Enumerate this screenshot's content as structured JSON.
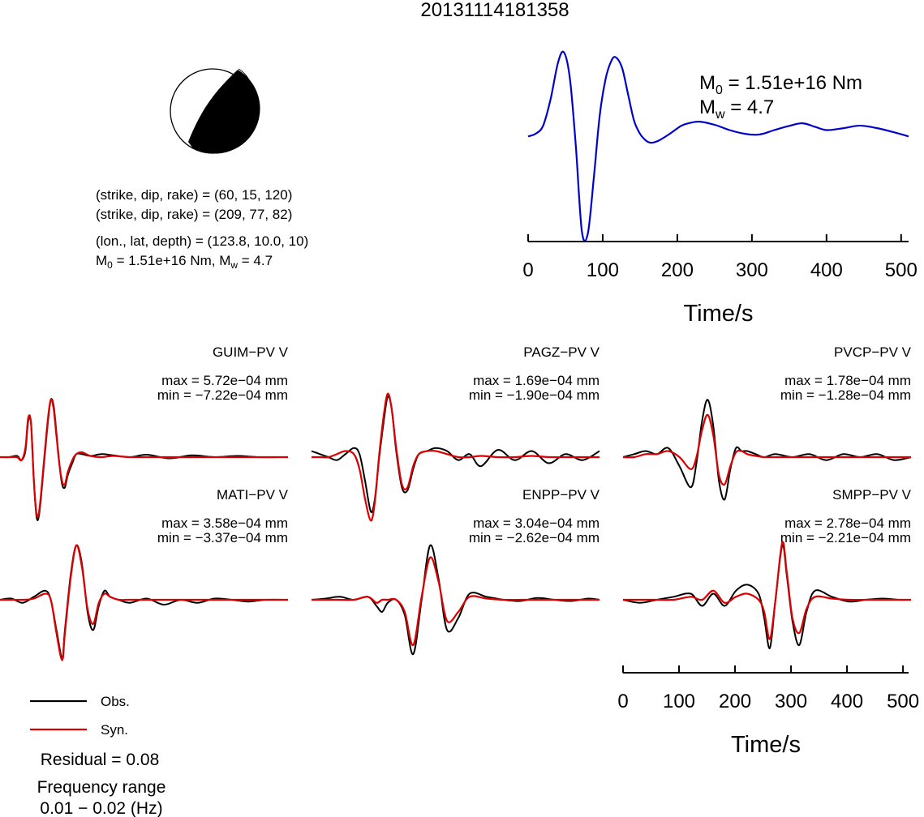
{
  "title": "20131114181358",
  "mechanism": {
    "plane1": "(strike, dip, rake) = (60, 15, 120)",
    "plane2": "(strike, dip, rake) = (209, 77, 82)",
    "location": "(lon., lat, depth) = (123.8, 10.0, 10)",
    "moment_prefix": "M",
    "moment_sub": "0",
    "moment_mid": " = 1.51e+16 Nm, M",
    "moment_sub2": "w",
    "moment_suffix": " = 4.7"
  },
  "stf_annotation": {
    "m0_main": "M",
    "m0_sub": "0",
    "m0_value": " = 1.51e+16 Nm",
    "mw_main": "M",
    "mw_sub": "w",
    "mw_value": " = 4.7"
  },
  "legend": {
    "observed": "Obs.",
    "synthetic": "Syn.",
    "residual": "Residual = 0.08",
    "freq_label": "Frequency range",
    "freq_value": "0.01 − 0.02 (Hz)"
  },
  "colors": {
    "observed": "#000000",
    "synthetic": "#dd0000",
    "stf": "#0000cc"
  },
  "chart_data": [
    {
      "type": "line",
      "name": "source-time-function",
      "xlabel": "Time/s",
      "xlim": [
        0,
        510
      ],
      "x_ticks": [
        0,
        100,
        200,
        300,
        400,
        500
      ],
      "tick_labels": [
        "0",
        "100",
        "200",
        "300",
        "400",
        "500"
      ],
      "x": [
        0,
        10,
        20,
        30,
        40,
        48,
        56,
        64,
        72,
        80,
        88,
        96,
        104,
        112,
        118,
        126,
        134,
        142,
        150,
        158,
        165,
        175,
        190,
        205,
        215,
        230,
        250,
        270,
        290,
        305,
        315,
        330,
        350,
        368,
        385,
        400,
        420,
        440,
        450,
        470,
        490,
        510
      ],
      "values": [
        0.0,
        0.05,
        0.2,
        0.7,
        1.4,
        1.6,
        1.1,
        -0.2,
        -1.8,
        -1.85,
        -0.8,
        0.4,
        1.1,
        1.45,
        1.5,
        1.3,
        0.8,
        0.3,
        0.05,
        -0.08,
        -0.12,
        -0.08,
        0.05,
        0.2,
        0.25,
        0.28,
        0.22,
        0.12,
        0.05,
        0.03,
        0.05,
        0.12,
        0.2,
        0.25,
        0.18,
        0.12,
        0.15,
        0.2,
        0.2,
        0.15,
        0.08,
        0.0
      ],
      "ylim": [
        -2,
        1.7
      ]
    },
    {
      "type": "line",
      "name": "waveform-panel",
      "station": "GUIM−PV V",
      "max_text": "max = 5.72e−04 mm",
      "min_text": "min = −7.22e−04 mm",
      "x": [
        0,
        15,
        30,
        38,
        45,
        50,
        55,
        60,
        65,
        70,
        78,
        85,
        90,
        95,
        100,
        105,
        110,
        115,
        120,
        128,
        135,
        145,
        160,
        180,
        200,
        230,
        260,
        300,
        340,
        380,
        420,
        460,
        510
      ],
      "observed": [
        0.0,
        0.0,
        0.02,
        -0.05,
        0.1,
        0.6,
        0.55,
        -0.4,
        -1.0,
        -0.9,
        -0.1,
        0.6,
        0.95,
        0.85,
        0.4,
        -0.1,
        -0.45,
        -0.5,
        -0.3,
        -0.1,
        0.05,
        0.05,
        0.02,
        0.05,
        0.03,
        0.0,
        0.04,
        -0.02,
        0.03,
        0.0,
        0.02,
        0.0,
        0.0
      ],
      "synthetic": [
        0.0,
        0.0,
        0.0,
        -0.05,
        0.15,
        0.65,
        0.55,
        -0.4,
        -0.95,
        -0.85,
        -0.05,
        0.65,
        0.95,
        0.8,
        0.35,
        -0.1,
        -0.4,
        -0.45,
        -0.25,
        -0.05,
        0.05,
        0.08,
        0.02,
        0.0,
        0.02,
        0.0,
        0.0,
        0.0,
        0.0,
        0.0,
        0.0,
        0.0,
        0.0
      ],
      "xlim": [
        0,
        510
      ],
      "ylim": [
        -1.1,
        1.1
      ]
    },
    {
      "type": "line",
      "name": "waveform-panel",
      "station": "PAGZ−PV V",
      "max_text": "max = 1.69e−04 mm",
      "min_text": "min = −1.90e−04 mm",
      "x": [
        0,
        15,
        30,
        45,
        60,
        75,
        85,
        95,
        105,
        112,
        120,
        128,
        135,
        142,
        150,
        160,
        170,
        180,
        190,
        205,
        220,
        240,
        260,
        280,
        300,
        330,
        360,
        390,
        420,
        450,
        480,
        510
      ],
      "observed": [
        0.1,
        0.05,
        0.0,
        -0.05,
        0.05,
        0.15,
        0.05,
        -0.4,
        -0.9,
        -0.7,
        0.0,
        0.6,
        1.0,
        0.8,
        0.1,
        -0.5,
        -0.55,
        -0.2,
        0.05,
        0.1,
        0.15,
        0.1,
        -0.05,
        0.05,
        -0.15,
        0.12,
        -0.05,
        0.1,
        -0.1,
        0.05,
        -0.05,
        0.1
      ],
      "synthetic": [
        0.0,
        0.0,
        0.0,
        0.05,
        0.1,
        0.05,
        -0.2,
        -0.7,
        -1.05,
        -0.75,
        0.05,
        0.7,
        1.05,
        0.8,
        0.15,
        -0.45,
        -0.5,
        -0.15,
        0.05,
        0.1,
        0.1,
        0.05,
        0.0,
        0.0,
        0.02,
        0.0,
        0.0,
        0.02,
        0.0,
        0.0,
        0.0,
        0.0
      ],
      "xlim": [
        0,
        510
      ],
      "ylim": [
        -1.1,
        1.1
      ]
    },
    {
      "type": "line",
      "name": "waveform-panel",
      "station": "PVCP−PV V",
      "max_text": "max = 1.78e−04 mm",
      "min_text": "min = −1.28e−04 mm",
      "x": [
        0,
        20,
        40,
        60,
        80,
        100,
        120,
        130,
        140,
        150,
        160,
        170,
        180,
        190,
        200,
        210,
        220,
        235,
        250,
        270,
        300,
        330,
        360,
        390,
        420,
        450,
        480,
        510
      ],
      "observed": [
        0.0,
        0.05,
        0.1,
        0.05,
        0.15,
        -0.15,
        -0.5,
        -0.1,
        0.6,
        0.95,
        0.5,
        -0.4,
        -0.7,
        -0.2,
        0.15,
        0.1,
        0.1,
        0.05,
        0.0,
        0.05,
        0.0,
        0.05,
        -0.05,
        0.05,
        0.0,
        0.05,
        -0.05,
        0.0
      ],
      "synthetic": [
        0.0,
        0.0,
        0.05,
        0.05,
        0.1,
        0.0,
        -0.2,
        0.0,
        0.45,
        0.7,
        0.35,
        -0.3,
        -0.45,
        -0.15,
        0.08,
        0.1,
        0.05,
        0.02,
        0.0,
        0.0,
        0.0,
        0.0,
        0.0,
        0.0,
        0.0,
        0.0,
        0.0,
        0.0
      ],
      "xlim": [
        0,
        510
      ],
      "ylim": [
        -1.1,
        1.1
      ]
    },
    {
      "type": "line",
      "name": "waveform-panel",
      "station": "MATI−PV V",
      "max_text": "max = 3.58e−04 mm",
      "min_text": "min = −3.37e−04 mm",
      "x": [
        0,
        20,
        40,
        60,
        80,
        90,
        100,
        110,
        115,
        125,
        135,
        145,
        155,
        165,
        175,
        185,
        195,
        210,
        230,
        260,
        290,
        320,
        350,
        380,
        410,
        440,
        470,
        510
      ],
      "observed": [
        0.0,
        0.02,
        -0.05,
        0.05,
        0.15,
        0.0,
        -0.5,
        -0.95,
        -0.5,
        0.4,
        0.9,
        0.6,
        -0.2,
        -0.5,
        -0.1,
        0.15,
        0.05,
        0.0,
        -0.05,
        0.02,
        -0.08,
        0.0,
        -0.05,
        0.02,
        0.0,
        -0.03,
        0.0,
        0.0
      ],
      "synthetic": [
        0.0,
        0.0,
        0.0,
        0.02,
        0.1,
        0.0,
        -0.55,
        -1.0,
        -0.55,
        0.35,
        0.9,
        0.55,
        -0.15,
        -0.4,
        -0.05,
        0.1,
        0.05,
        0.0,
        0.0,
        0.0,
        0.0,
        0.0,
        0.0,
        0.0,
        0.0,
        0.0,
        0.0,
        0.0
      ],
      "xlim": [
        0,
        510
      ],
      "ylim": [
        -1.1,
        1.1
      ]
    },
    {
      "type": "line",
      "name": "waveform-panel",
      "station": "ENPP−PV V",
      "max_text": "max = 3.04e−04 mm",
      "min_text": "min = −2.62e−04 mm",
      "x": [
        0,
        25,
        50,
        75,
        100,
        115,
        125,
        135,
        150,
        165,
        180,
        195,
        210,
        225,
        240,
        260,
        280,
        310,
        340,
        370,
        400,
        430,
        460,
        490,
        510
      ],
      "observed": [
        0.0,
        0.02,
        0.05,
        0.0,
        0.05,
        -0.1,
        -0.2,
        -0.05,
        0.0,
        -0.25,
        -0.9,
        0.0,
        0.9,
        0.35,
        -0.5,
        -0.3,
        0.1,
        0.05,
        0.0,
        -0.02,
        0.03,
        0.0,
        -0.02,
        0.02,
        0.0
      ],
      "synthetic": [
        0.0,
        0.0,
        0.0,
        0.0,
        0.05,
        -0.05,
        0.0,
        0.0,
        0.0,
        -0.2,
        -0.75,
        0.05,
        0.7,
        0.3,
        -0.35,
        -0.2,
        0.05,
        0.02,
        0.0,
        0.0,
        0.0,
        0.0,
        0.0,
        0.0,
        0.0
      ],
      "xlim": [
        0,
        510
      ],
      "ylim": [
        -1.1,
        1.1
      ]
    },
    {
      "type": "line",
      "name": "waveform-panel",
      "station": "SMPP−PV V",
      "max_text": "max = 2.78e−04 mm",
      "min_text": "min = −2.21e−04 mm",
      "x": [
        0,
        30,
        60,
        90,
        120,
        140,
        160,
        180,
        200,
        220,
        240,
        250,
        260,
        270,
        282,
        290,
        300,
        312,
        325,
        340,
        370,
        400,
        430,
        460,
        490,
        510
      ],
      "observed": [
        0.0,
        -0.05,
        0.0,
        0.05,
        0.1,
        -0.1,
        0.1,
        -0.1,
        0.15,
        0.25,
        0.1,
        -0.3,
        -0.8,
        0.0,
        0.9,
        0.4,
        -0.35,
        -0.75,
        -0.2,
        0.15,
        0.05,
        -0.03,
        0.0,
        0.02,
        0.0,
        0.0
      ],
      "synthetic": [
        0.0,
        0.0,
        0.0,
        0.0,
        0.05,
        0.0,
        0.15,
        -0.05,
        0.05,
        0.1,
        0.0,
        -0.2,
        -0.65,
        0.0,
        0.95,
        0.45,
        -0.3,
        -0.55,
        -0.15,
        0.05,
        0.02,
        0.0,
        0.0,
        0.0,
        0.0,
        0.0
      ],
      "xlim": [
        0,
        510
      ],
      "ylim": [
        -1.1,
        1.1
      ]
    },
    {
      "type": "line",
      "name": "waveform-time-axis",
      "xlabel": "Time/s",
      "xlim": [
        0,
        510
      ],
      "x_ticks": [
        0,
        100,
        200,
        300,
        400,
        500
      ],
      "tick_labels": [
        "0",
        "100",
        "200",
        "300",
        "400",
        "500"
      ]
    }
  ]
}
